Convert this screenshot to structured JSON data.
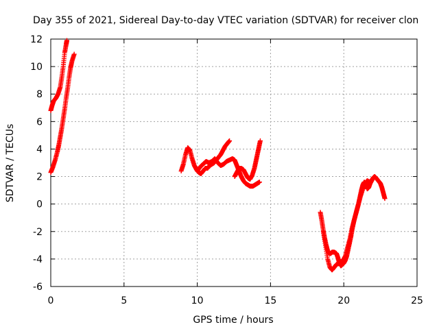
{
  "chart_data": {
    "type": "scatter",
    "title": "Day 355 of 2021, Sidereal Day-to-day VTEC variation (SDTVAR) for receiver clon",
    "xlabel": "GPS time / hours",
    "ylabel": "SDTVAR / TECUs",
    "xlim": [
      0,
      25
    ],
    "ylim": [
      -6,
      12
    ],
    "xticks": [
      0,
      5,
      10,
      15,
      20,
      25
    ],
    "yticks": [
      -6,
      -4,
      -2,
      0,
      2,
      4,
      6,
      8,
      10,
      12
    ],
    "xtick_labels": [
      "0",
      "5",
      "10",
      "15",
      "20",
      "25"
    ],
    "ytick_labels": [
      "-6",
      "-4",
      "-2",
      "0",
      "2",
      "4",
      "6",
      "8",
      "10",
      "12"
    ],
    "grid": true,
    "legend": "none",
    "marker": "plus",
    "color": "#ff0000",
    "series": [
      {
        "points": [
          [
            0.0,
            6.8
          ],
          [
            0.1,
            7.2
          ],
          [
            0.2,
            7.5
          ],
          [
            0.35,
            7.7
          ],
          [
            0.5,
            8.0
          ],
          [
            0.65,
            8.5
          ],
          [
            0.75,
            9.2
          ],
          [
            0.85,
            10.0
          ],
          [
            0.95,
            11.0
          ],
          [
            1.05,
            11.6
          ],
          [
            1.1,
            11.9
          ]
        ]
      },
      {
        "points": [
          [
            0.0,
            2.3
          ],
          [
            0.15,
            2.7
          ],
          [
            0.3,
            3.2
          ],
          [
            0.45,
            3.8
          ],
          [
            0.55,
            4.3
          ],
          [
            0.65,
            4.9
          ],
          [
            0.75,
            5.5
          ],
          [
            0.85,
            6.2
          ],
          [
            0.95,
            6.9
          ],
          [
            1.05,
            7.7
          ],
          [
            1.15,
            8.4
          ],
          [
            1.25,
            9.2
          ],
          [
            1.35,
            9.9
          ],
          [
            1.45,
            10.4
          ],
          [
            1.6,
            10.9
          ]
        ]
      },
      {
        "points": [
          [
            8.9,
            2.4
          ],
          [
            9.05,
            2.9
          ],
          [
            9.2,
            3.6
          ],
          [
            9.35,
            4.1
          ],
          [
            9.5,
            3.9
          ],
          [
            9.65,
            3.3
          ],
          [
            9.8,
            2.8
          ],
          [
            9.95,
            2.5
          ],
          [
            10.1,
            2.3
          ],
          [
            10.25,
            2.2
          ],
          [
            10.4,
            2.4
          ],
          [
            10.55,
            2.6
          ],
          [
            10.7,
            2.6
          ],
          [
            10.85,
            2.8
          ],
          [
            11.0,
            2.9
          ],
          [
            11.15,
            3.0
          ],
          [
            11.3,
            3.2
          ],
          [
            11.45,
            3.4
          ],
          [
            11.6,
            3.6
          ],
          [
            11.75,
            3.9
          ],
          [
            11.9,
            4.2
          ],
          [
            12.05,
            4.4
          ],
          [
            12.2,
            4.6
          ]
        ]
      },
      {
        "points": [
          [
            10.0,
            2.4
          ],
          [
            10.2,
            2.7
          ],
          [
            10.4,
            2.9
          ],
          [
            10.6,
            3.1
          ],
          [
            10.8,
            3.0
          ],
          [
            11.0,
            3.1
          ],
          [
            11.2,
            3.3
          ],
          [
            11.4,
            3.0
          ],
          [
            11.6,
            2.8
          ],
          [
            11.8,
            2.9
          ],
          [
            12.0,
            3.1
          ],
          [
            12.2,
            3.2
          ],
          [
            12.4,
            3.3
          ],
          [
            12.55,
            3.2
          ],
          [
            12.7,
            2.8
          ],
          [
            12.85,
            2.4
          ],
          [
            13.0,
            2.0
          ],
          [
            13.15,
            1.7
          ],
          [
            13.3,
            1.5
          ],
          [
            13.45,
            1.4
          ],
          [
            13.6,
            1.3
          ],
          [
            13.8,
            1.3
          ],
          [
            13.95,
            1.4
          ],
          [
            14.1,
            1.5
          ],
          [
            14.25,
            1.6
          ]
        ]
      },
      {
        "points": [
          [
            12.55,
            2.0
          ],
          [
            12.7,
            2.3
          ],
          [
            12.85,
            2.6
          ],
          [
            13.0,
            2.6
          ],
          [
            13.15,
            2.5
          ],
          [
            13.3,
            2.2
          ],
          [
            13.45,
            1.9
          ],
          [
            13.6,
            1.8
          ],
          [
            13.75,
            2.1
          ],
          [
            13.9,
            2.6
          ],
          [
            14.0,
            3.1
          ],
          [
            14.1,
            3.6
          ],
          [
            14.2,
            4.1
          ],
          [
            14.3,
            4.6
          ]
        ]
      },
      {
        "points": [
          [
            18.4,
            -0.6
          ],
          [
            18.5,
            -1.2
          ],
          [
            18.6,
            -1.9
          ],
          [
            18.7,
            -2.5
          ],
          [
            18.8,
            -3.0
          ],
          [
            18.9,
            -3.4
          ],
          [
            19.0,
            -3.6
          ],
          [
            19.1,
            -3.6
          ],
          [
            19.2,
            -3.5
          ],
          [
            19.35,
            -3.5
          ],
          [
            19.5,
            -3.6
          ],
          [
            19.6,
            -3.9
          ],
          [
            19.7,
            -4.3
          ],
          [
            19.8,
            -4.5
          ],
          [
            19.9,
            -4.4
          ],
          [
            20.0,
            -4.3
          ],
          [
            20.1,
            -4.1
          ],
          [
            20.2,
            -3.8
          ],
          [
            20.3,
            -3.3
          ],
          [
            20.4,
            -2.8
          ],
          [
            20.5,
            -2.3
          ],
          [
            20.6,
            -1.7
          ],
          [
            20.7,
            -1.2
          ],
          [
            20.8,
            -0.8
          ],
          [
            20.9,
            -0.4
          ],
          [
            21.0,
            0.0
          ],
          [
            21.1,
            0.5
          ],
          [
            21.2,
            1.0
          ],
          [
            21.3,
            1.4
          ],
          [
            21.4,
            1.6
          ],
          [
            21.5,
            1.4
          ],
          [
            21.6,
            1.1
          ],
          [
            21.7,
            1.2
          ],
          [
            21.8,
            1.5
          ],
          [
            21.9,
            1.7
          ],
          [
            22.0,
            1.9
          ],
          [
            22.1,
            2.0
          ],
          [
            22.2,
            1.9
          ],
          [
            22.35,
            1.7
          ],
          [
            22.5,
            1.5
          ],
          [
            22.6,
            1.2
          ],
          [
            22.7,
            0.8
          ],
          [
            22.8,
            0.4
          ]
        ]
      },
      {
        "points": [
          [
            18.6,
            -2.0
          ],
          [
            18.75,
            -3.0
          ],
          [
            18.9,
            -4.0
          ],
          [
            19.05,
            -4.6
          ],
          [
            19.2,
            -4.8
          ],
          [
            19.35,
            -4.6
          ],
          [
            19.5,
            -4.4
          ],
          [
            19.65,
            -4.3
          ],
          [
            19.8,
            -4.2
          ],
          [
            19.95,
            -4.1
          ],
          [
            20.1,
            -3.8
          ],
          [
            20.25,
            -3.2
          ],
          [
            20.4,
            -2.6
          ],
          [
            20.55,
            -1.8
          ],
          [
            20.7,
            -1.2
          ],
          [
            20.85,
            -0.6
          ],
          [
            21.0,
            0.0
          ],
          [
            21.15,
            0.6
          ],
          [
            21.3,
            1.1
          ],
          [
            21.45,
            1.5
          ],
          [
            21.6,
            1.7
          ],
          [
            21.75,
            1.6
          ],
          [
            21.9,
            1.7
          ]
        ]
      }
    ]
  }
}
